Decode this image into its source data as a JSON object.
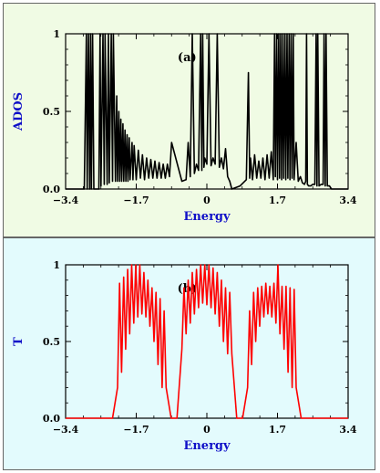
{
  "chart_data": [
    {
      "type": "line",
      "panel_label": "(a)",
      "xlabel": "Energy",
      "ylabel": "ADOS",
      "xlim": [
        -3.4,
        3.4
      ],
      "ylim": [
        0,
        1
      ],
      "xticks": [
        -3.4,
        -1.7,
        0,
        1.7,
        3.4
      ],
      "xtick_labels": [
        "−3.4",
        "−1.7",
        "0",
        "1.7",
        "3.4"
      ],
      "yticks": [
        0,
        0.5,
        1
      ],
      "ytick_labels": [
        "0.0",
        "0.5",
        "1"
      ],
      "line_color": "#000000",
      "background": "#f0fbe4",
      "series": [
        {
          "x": [
            -3.4,
            -2.95,
            -2.9,
            -2.88,
            -2.85,
            -2.82,
            -2.8,
            -2.78,
            -2.75,
            -2.72,
            -2.6,
            -2.57,
            -2.55,
            -2.5,
            -2.47,
            -2.45,
            -2.4,
            -2.37,
            -2.35,
            -2.3,
            -2.27,
            -2.25,
            -2.2,
            -2.17,
            -2.15,
            -2.12,
            -2.1,
            -2.07,
            -2.05,
            -2.02,
            -2.0,
            -1.97,
            -1.95,
            -1.92,
            -1.9,
            -1.87,
            -1.85,
            -1.8,
            -1.78,
            -1.75,
            -1.7,
            -1.65,
            -1.6,
            -1.55,
            -1.5,
            -1.45,
            -1.4,
            -1.35,
            -1.3,
            -1.25,
            -1.2,
            -1.15,
            -1.1,
            -1.05,
            -1.0,
            -0.95,
            -0.9,
            -0.85,
            -0.6,
            -0.5,
            -0.45,
            -0.4,
            -0.35,
            -0.3,
            -0.25,
            -0.2,
            -0.15,
            -0.12,
            -0.1,
            -0.07,
            -0.05,
            0.0,
            0.05,
            0.1,
            0.15,
            0.2,
            0.25,
            0.3,
            0.35,
            0.4,
            0.45,
            0.5,
            0.55,
            0.6,
            0.8,
            0.95,
            1.0,
            1.03,
            1.05,
            1.1,
            1.15,
            1.2,
            1.25,
            1.3,
            1.35,
            1.4,
            1.45,
            1.5,
            1.55,
            1.6,
            1.63,
            1.65,
            1.68,
            1.7,
            1.73,
            1.75,
            1.78,
            1.8,
            1.83,
            1.85,
            1.88,
            1.9,
            1.93,
            1.95,
            1.98,
            2.0,
            2.03,
            2.05,
            2.08,
            2.1,
            2.15,
            2.2,
            2.25,
            2.3,
            2.35,
            2.38,
            2.4,
            2.42,
            2.45,
            2.5,
            2.55,
            2.6,
            2.63,
            2.65,
            2.67,
            2.7,
            2.75,
            2.8,
            2.82,
            2.85,
            2.87,
            2.9,
            2.95,
            3.0,
            3.4
          ],
          "y": [
            0.0,
            0.0,
            1.0,
            0.0,
            1.0,
            0.0,
            1.0,
            0.0,
            1.0,
            0.0,
            0.0,
            1.0,
            0.02,
            1.0,
            0.03,
            1.0,
            0.03,
            1.0,
            0.04,
            1.0,
            0.05,
            1.0,
            0.05,
            0.6,
            0.05,
            0.5,
            0.05,
            0.45,
            0.05,
            0.42,
            0.05,
            0.38,
            0.05,
            0.35,
            0.05,
            0.33,
            0.06,
            0.3,
            0.06,
            0.28,
            0.06,
            0.25,
            0.07,
            0.22,
            0.06,
            0.2,
            0.07,
            0.19,
            0.07,
            0.18,
            0.07,
            0.17,
            0.07,
            0.16,
            0.07,
            0.16,
            0.08,
            0.3,
            0.05,
            0.06,
            0.3,
            0.08,
            1.0,
            0.1,
            0.16,
            0.12,
            1.0,
            0.12,
            1.0,
            0.14,
            0.2,
            0.16,
            1.0,
            0.15,
            0.2,
            0.16,
            1.0,
            0.14,
            0.2,
            0.13,
            0.26,
            0.08,
            0.05,
            0.0,
            0.02,
            0.06,
            0.75,
            0.07,
            0.2,
            0.06,
            0.22,
            0.07,
            0.18,
            0.07,
            0.2,
            0.06,
            0.22,
            0.07,
            0.24,
            0.06,
            1.0,
            0.08,
            1.0,
            0.06,
            1.0,
            0.07,
            1.0,
            0.06,
            1.0,
            0.07,
            1.0,
            0.06,
            1.0,
            0.07,
            1.0,
            0.06,
            1.0,
            0.07,
            1.0,
            0.06,
            0.3,
            0.05,
            0.08,
            0.04,
            0.03,
            0.05,
            1.0,
            0.03,
            0.02,
            0.02,
            0.03,
            0.03,
            1.0,
            0.02,
            1.0,
            0.02,
            0.03,
            0.03,
            1.0,
            0.02,
            1.0,
            0.02,
            0.02,
            0.0,
            0.0
          ]
        }
      ]
    },
    {
      "type": "line",
      "panel_label": "(b)",
      "xlabel": "Energy",
      "ylabel": "T",
      "xlim": [
        -3.4,
        3.4
      ],
      "ylim": [
        0,
        1
      ],
      "xticks": [
        -3.4,
        -1.7,
        0,
        1.7,
        3.4
      ],
      "xtick_labels": [
        "−3.4",
        "−1.7",
        "0",
        "1.7",
        "3.4"
      ],
      "yticks": [
        0,
        0.5,
        1
      ],
      "ytick_labels": [
        "0.0",
        "0.5",
        "1"
      ],
      "line_color": "#ff0000",
      "background": "#e3fbfd",
      "series": [
        {
          "segments": [
            {
              "start": -2.15,
              "end": -0.98,
              "rise": 0.12,
              "upper": [
                0.88,
                0.92,
                0.97,
                1.0,
                1.0,
                1.0,
                0.95,
                0.9,
                0.85,
                0.82,
                0.78,
                0.7
              ],
              "lower": [
                0.2,
                0.3,
                0.45,
                0.55,
                0.62,
                0.66,
                0.68,
                0.66,
                0.6,
                0.5,
                0.35,
                0.2
              ]
            },
            {
              "start": -0.6,
              "end": 0.6,
              "rise": 0.12,
              "upper": [
                0.85,
                0.9,
                0.95,
                0.97,
                1.0,
                1.0,
                1.0,
                0.98,
                0.95,
                0.9,
                0.85,
                0.82
              ],
              "lower": [
                0.45,
                0.55,
                0.62,
                0.68,
                0.72,
                0.75,
                0.74,
                0.72,
                0.68,
                0.6,
                0.5,
                0.42
              ]
            },
            {
              "start": 0.98,
              "end": 2.15,
              "rise": 0.12,
              "upper": [
                0.7,
                0.82,
                0.85,
                0.86,
                0.88,
                0.86,
                0.88,
                1.0,
                0.86,
                0.86,
                0.85,
                0.84
              ],
              "lower": [
                0.2,
                0.35,
                0.5,
                0.6,
                0.66,
                0.68,
                0.66,
                0.62,
                0.55,
                0.45,
                0.3,
                0.2
              ]
            }
          ]
        }
      ]
    }
  ]
}
